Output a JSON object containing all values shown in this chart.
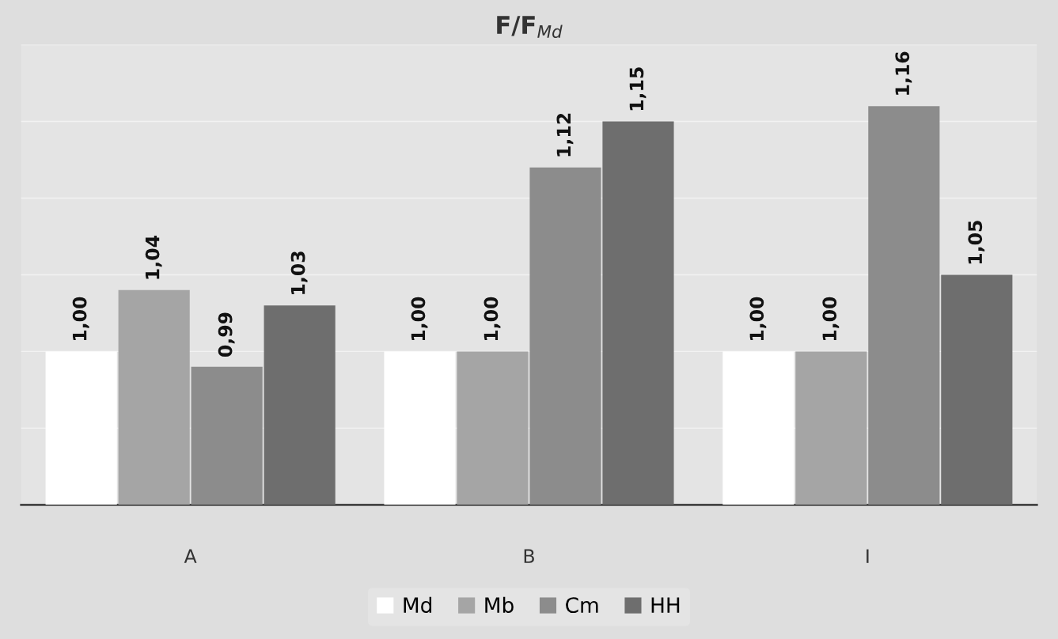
{
  "chart_data": {
    "type": "bar",
    "title": "F/F$_{Md}$",
    "categories": [
      "A",
      "B",
      "I"
    ],
    "series": [
      {
        "name": "Md",
        "color": "#ffffff",
        "values": [
          1.0,
          1.0,
          1.0
        ],
        "value_labels": [
          "1,00",
          "1,00",
          "1,00"
        ]
      },
      {
        "name": "Mb",
        "color": "#a5a5a5",
        "values": [
          1.04,
          1.0,
          1.0
        ],
        "value_labels": [
          "1,04",
          "1,00",
          "1,00"
        ]
      },
      {
        "name": "Cm",
        "color": "#8c8c8c",
        "values": [
          0.99,
          1.12,
          1.16
        ],
        "value_labels": [
          "0,99",
          "1,12",
          "1,16"
        ]
      },
      {
        "name": "HH",
        "color": "#6e6e6e",
        "values": [
          1.03,
          1.15,
          1.05
        ],
        "value_labels": [
          "1,03",
          "1,15",
          "1,05"
        ]
      }
    ],
    "ylim": [
      0.9,
      1.2
    ],
    "yticks": [
      {
        "value": 0.9,
        "label": null
      },
      {
        "value": 0.95,
        "label": null
      },
      {
        "value": 1.0,
        "label": null
      },
      {
        "value": 1.05,
        "label": null
      },
      {
        "value": 1.1,
        "label": null
      },
      {
        "value": 1.15,
        "label": null
      },
      {
        "value": 1.2,
        "label": null
      }
    ],
    "tick_labels": "x",
    "grid": "y",
    "legend": "bottom"
  }
}
